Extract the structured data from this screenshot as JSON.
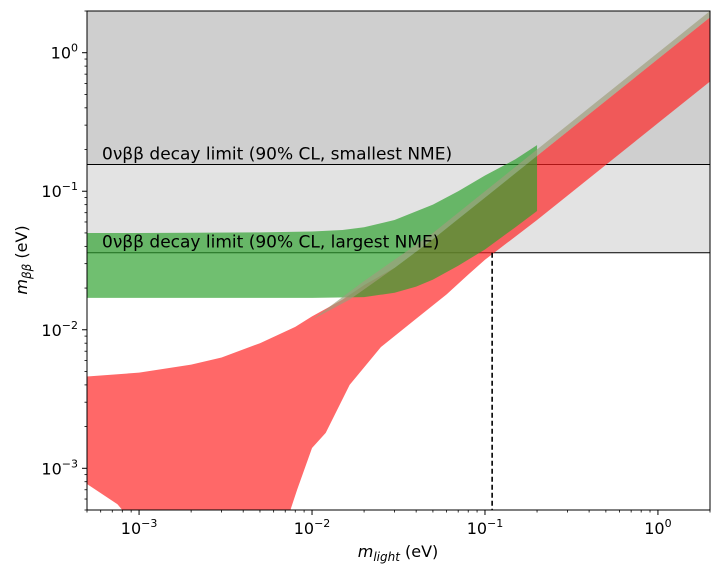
{
  "chart_data": {
    "type": "area",
    "title": "",
    "x_scale": "log",
    "y_scale": "log",
    "xlim": [
      0.0005,
      2.0
    ],
    "ylim": [
      0.0005,
      2.0
    ],
    "grid": false,
    "xlabel": {
      "main": "m",
      "sub": "light",
      "unit": " (eV)"
    },
    "ylabel": {
      "main": "m",
      "sub": "ββ",
      "unit": " (eV)"
    },
    "x_ticks": [
      {
        "value": 0.001,
        "base": "10",
        "exp": "−3"
      },
      {
        "value": 0.01,
        "base": "10",
        "exp": "−2"
      },
      {
        "value": 0.1,
        "base": "10",
        "exp": "−1"
      },
      {
        "value": 1,
        "base": "10",
        "exp": "0"
      }
    ],
    "y_ticks": [
      {
        "value": 0.001,
        "base": "10",
        "exp": "−3"
      },
      {
        "value": 0.01,
        "base": "10",
        "exp": "−2"
      },
      {
        "value": 0.1,
        "base": "10",
        "exp": "−1"
      },
      {
        "value": 1,
        "base": "10",
        "exp": "0"
      }
    ],
    "limits": [
      {
        "label": "0νββ decay limit (90% CL, smallest NME)",
        "value": 0.156,
        "color": "#cfcfcf"
      },
      {
        "label": "0νββ decay limit (90% CL, largest NME)",
        "value": 0.036,
        "color": "#e3e3e3"
      }
    ],
    "crossing": {
      "x": 0.11,
      "y": 0.036
    },
    "series": [
      {
        "color": "#ff2020",
        "upper": [
          [
            0.0005,
            0.0046
          ],
          [
            0.001,
            0.0049
          ],
          [
            0.002,
            0.0056
          ],
          [
            0.003,
            0.0063
          ],
          [
            0.005,
            0.008
          ],
          [
            0.008,
            0.0105
          ],
          [
            0.01,
            0.0125
          ],
          [
            0.015,
            0.0165
          ],
          [
            0.02,
            0.021
          ],
          [
            0.03,
            0.028
          ],
          [
            0.05,
            0.045
          ],
          [
            0.07,
            0.063
          ],
          [
            0.1,
            0.09
          ],
          [
            0.2,
            0.18
          ],
          [
            0.3,
            0.27
          ],
          [
            0.5,
            0.45
          ],
          [
            1,
            0.9
          ],
          [
            2,
            1.8
          ]
        ],
        "lower": [
          [
            0.0005,
            0.00077
          ],
          [
            0.00075,
            0.00055
          ],
          [
            0.0008,
            0.0005
          ],
          [
            0.0075,
            0.0005
          ],
          [
            0.0082,
            0.0007
          ],
          [
            0.01,
            0.0014
          ],
          [
            0.012,
            0.0018
          ],
          [
            0.0165,
            0.004
          ],
          [
            0.025,
            0.0075
          ],
          [
            0.04,
            0.012
          ],
          [
            0.06,
            0.018
          ],
          [
            0.08,
            0.025
          ],
          [
            0.1,
            0.032
          ],
          [
            0.2,
            0.062
          ],
          [
            0.3,
            0.093
          ],
          [
            0.5,
            0.155
          ],
          [
            1,
            0.31
          ],
          [
            2,
            0.62
          ]
        ]
      },
      {
        "color": "#2ca02c",
        "upper": [
          [
            0.0005,
            0.05
          ],
          [
            0.001,
            0.05
          ],
          [
            0.002,
            0.0502
          ],
          [
            0.005,
            0.0505
          ],
          [
            0.01,
            0.0512
          ],
          [
            0.015,
            0.0525
          ],
          [
            0.02,
            0.055
          ],
          [
            0.03,
            0.062
          ],
          [
            0.05,
            0.08
          ],
          [
            0.07,
            0.1
          ],
          [
            0.1,
            0.13
          ],
          [
            0.15,
            0.17
          ],
          [
            0.2,
            0.215
          ]
        ],
        "lower": [
          [
            0.0005,
            0.017
          ],
          [
            0.001,
            0.017
          ],
          [
            0.005,
            0.017
          ],
          [
            0.01,
            0.017
          ],
          [
            0.02,
            0.0172
          ],
          [
            0.03,
            0.0185
          ],
          [
            0.04,
            0.0205
          ],
          [
            0.05,
            0.023
          ],
          [
            0.07,
            0.029
          ],
          [
            0.1,
            0.038
          ],
          [
            0.15,
            0.055
          ],
          [
            0.2,
            0.072
          ]
        ]
      },
      {
        "color": "#9e9e7c",
        "upper": [
          [
            0.01,
            0.0118
          ],
          [
            0.02,
            0.0225
          ],
          [
            0.05,
            0.05
          ],
          [
            0.1,
            0.1
          ],
          [
            0.2,
            0.2
          ],
          [
            0.5,
            0.5
          ],
          [
            1,
            1.0
          ],
          [
            2,
            2.0
          ]
        ],
        "lower": [
          [
            0.0165,
            0.0165
          ],
          [
            0.03,
            0.028
          ],
          [
            0.05,
            0.045
          ],
          [
            0.07,
            0.063
          ],
          [
            0.1,
            0.09
          ],
          [
            0.2,
            0.18
          ],
          [
            0.5,
            0.45
          ],
          [
            1,
            0.9
          ],
          [
            2,
            1.8
          ]
        ]
      }
    ]
  }
}
